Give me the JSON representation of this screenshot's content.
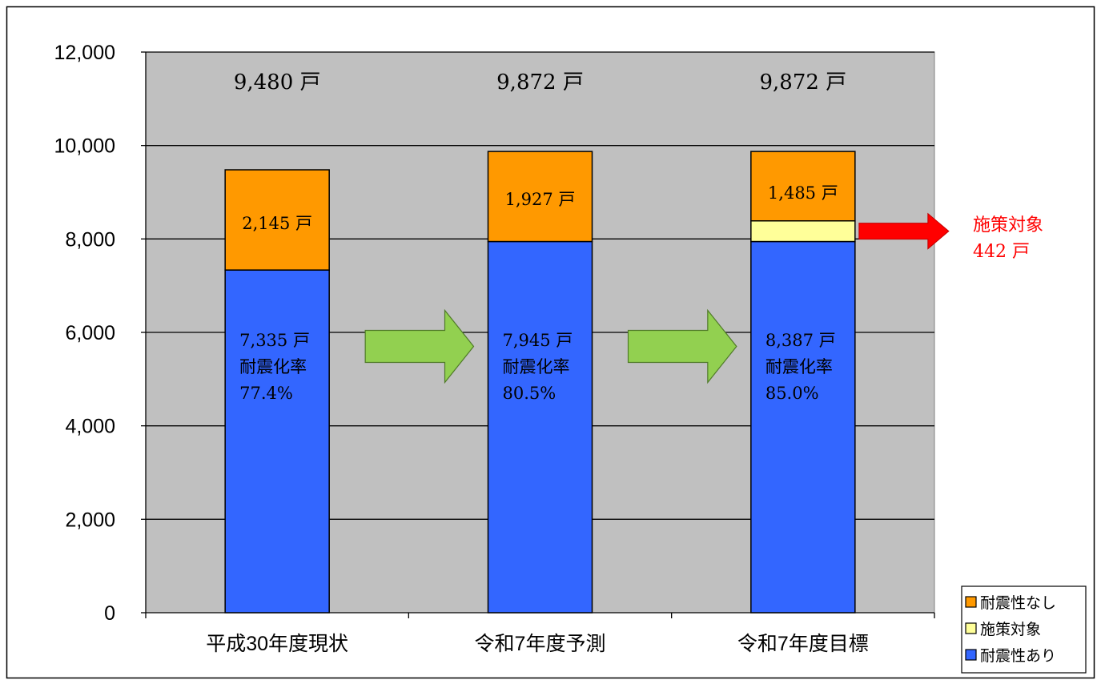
{
  "chart_data": {
    "type": "bar",
    "stacked": true,
    "categories": [
      "平成30年度現状",
      "令和7年度予測",
      "令和7年度目標"
    ],
    "series": [
      {
        "name": "耐震性あり",
        "values": [
          7335,
          7945,
          7945
        ],
        "color": "#3366FF"
      },
      {
        "name": "施策対象",
        "values": [
          0,
          0,
          442
        ],
        "color": "#FFFF99"
      },
      {
        "name": "耐震性なし",
        "values": [
          2145,
          1927,
          1485
        ],
        "color": "#FF9900"
      }
    ],
    "ylim": [
      0,
      12000
    ],
    "yticks": [
      "0",
      "2,000",
      "4,000",
      "6,000",
      "8,000",
      "10,000",
      "12,000"
    ],
    "ytick_values": [
      0,
      2000,
      4000,
      6000,
      8000,
      10000,
      12000
    ],
    "grid": true,
    "plot_background": "#C0C0C0",
    "legend_position": "bottom-right",
    "legend": [
      {
        "label": "耐震性なし",
        "color": "#FF9900"
      },
      {
        "label": "施策対象",
        "color": "#FFFF99"
      },
      {
        "label": "耐震性あり",
        "color": "#3366FF"
      }
    ],
    "total_labels": [
      "9,480 戸",
      "9,872 戸",
      "9,872 戸"
    ],
    "top_labels": [
      "2,145 戸",
      "1,927 戸",
      "1,485 戸"
    ],
    "bottom_labels": [
      [
        "7,335 戸",
        "耐震化率",
        "77.4%"
      ],
      [
        "7,945 戸",
        "耐震化率",
        "80.5%"
      ],
      [
        "8,387 戸",
        "耐震化率",
        "85.0%"
      ]
    ],
    "callout": {
      "lines": [
        "施策対象",
        "442 戸"
      ],
      "color": "#FF0000"
    }
  }
}
